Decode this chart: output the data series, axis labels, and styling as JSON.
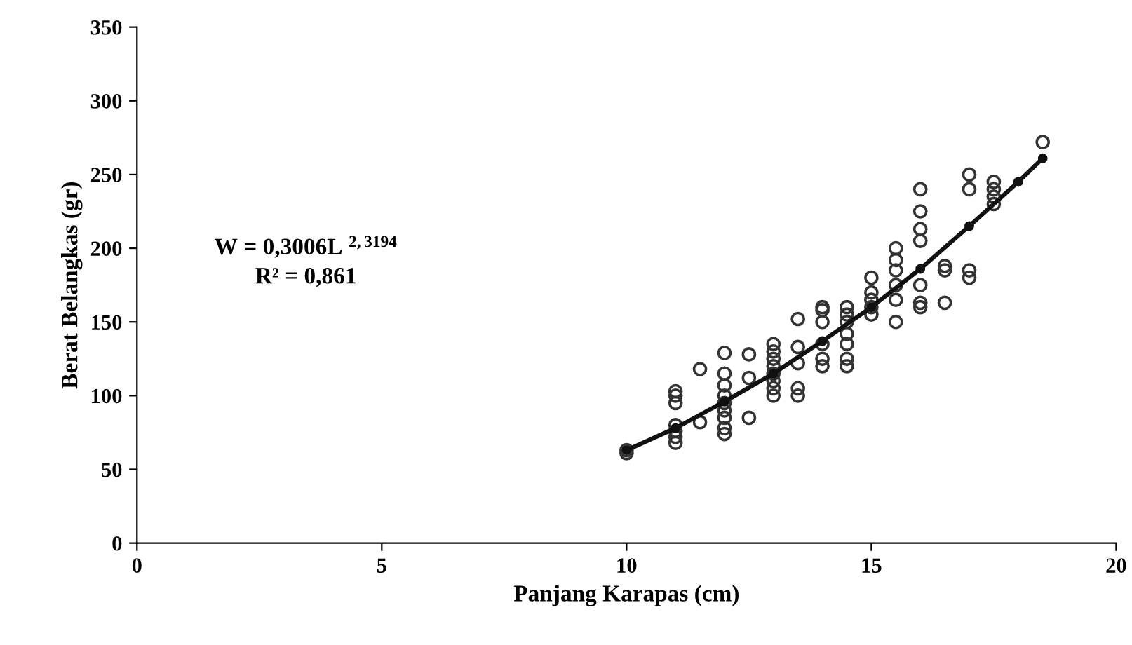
{
  "chart_data": {
    "type": "scatter",
    "xlabel": "Panjang Karapas (cm)",
    "ylabel": "Berat Belangkas (gr)",
    "xlim": [
      0,
      20
    ],
    "xticks": [
      0,
      5,
      10,
      15,
      20
    ],
    "ylim": [
      0,
      350
    ],
    "yticks": [
      0,
      50,
      100,
      150,
      200,
      250,
      300,
      350
    ],
    "grid": false,
    "legend": false,
    "annotations": [
      "W = 0,3006L $^{2,3194}$",
      "R² = 0,861"
    ],
    "series": [
      {
        "color": "#333333",
        "marker": "circle",
        "x": [
          10,
          10,
          11,
          11,
          11,
          11,
          11,
          11,
          11,
          11.5,
          11.5,
          12,
          12,
          12,
          12,
          12,
          12,
          12,
          12,
          12,
          12.5,
          12.5,
          12.5,
          13,
          13,
          13,
          13,
          13,
          13,
          13,
          13,
          13.5,
          13.5,
          13.5,
          13.5,
          13.5,
          14,
          14,
          14,
          14,
          14,
          14,
          14.5,
          14.5,
          14.5,
          14.5,
          14.5,
          14.5,
          14.5,
          15,
          15,
          15,
          15,
          15,
          15.5,
          15.5,
          15.5,
          15.5,
          15.5,
          15.5,
          16,
          16,
          16,
          16,
          16,
          16,
          16,
          16.5,
          16.5,
          16.5,
          17,
          17,
          17,
          17,
          17.5,
          17.5,
          17.5,
          17.5,
          18.5
        ],
        "values": [
          61,
          63,
          68,
          72,
          76,
          80,
          95,
          100,
          103,
          118,
          82,
          74,
          78,
          85,
          90,
          95,
          100,
          107,
          115,
          129,
          85,
          112,
          128,
          100,
          105,
          110,
          115,
          120,
          125,
          130,
          135,
          100,
          105,
          122,
          133,
          152,
          120,
          125,
          135,
          150,
          158,
          160,
          120,
          125,
          135,
          142,
          150,
          155,
          160,
          155,
          160,
          165,
          170,
          180,
          150,
          165,
          175,
          185,
          192,
          200,
          160,
          163,
          175,
          205,
          213,
          225,
          240,
          163,
          185,
          188,
          180,
          185,
          240,
          250,
          230,
          235,
          240,
          245,
          272
        ]
      },
      {
        "type": "line",
        "color": "#111111",
        "marker": "circle",
        "line_style": "solid",
        "x": [
          10,
          11,
          12,
          13,
          14,
          15,
          16,
          17,
          18,
          18.5
        ],
        "values": [
          63,
          78,
          96,
          115,
          137,
          160,
          186,
          215,
          245,
          261
        ]
      }
    ]
  }
}
